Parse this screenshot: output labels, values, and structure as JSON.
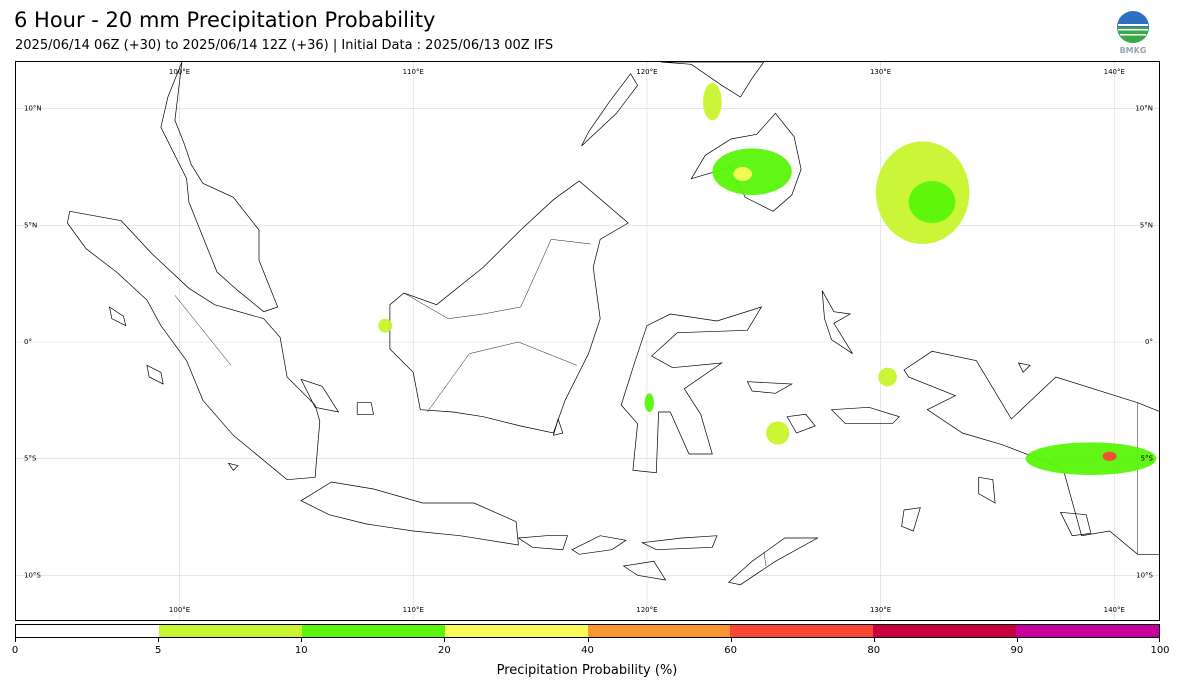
{
  "header": {
    "title": "6 Hour - 20 mm Precipitation Probability",
    "subtitle": "2025/06/14 06Z (+30) to 2025/06/14 12Z (+36) | Initial Data : 2025/06/13 00Z IFS",
    "logo_text": "BMKG"
  },
  "map": {
    "longitude_labels": [
      "100°E",
      "110°E",
      "120°E",
      "130°E",
      "140°E"
    ],
    "latitude_labels": [
      "10°N",
      "5°N",
      "0°",
      "5°S",
      "10°S"
    ],
    "longitudes": [
      100,
      110,
      120,
      130,
      140
    ],
    "latitudes": [
      10,
      5,
      0,
      -5,
      -10
    ],
    "lon_range": [
      93,
      142
    ],
    "lat_range": [
      -12,
      12
    ],
    "grid": true,
    "land_outline_color": "#000000",
    "precip_areas": [
      {
        "name": "mindanao",
        "lon": 124.5,
        "lat": 7.3,
        "rx": 1.7,
        "ry": 1.0,
        "prob": 15
      },
      {
        "name": "mindanao-core",
        "lon": 124.1,
        "lat": 7.2,
        "rx": 0.4,
        "ry": 0.3,
        "prob": 30
      },
      {
        "name": "pacific-north",
        "lon": 131.8,
        "lat": 6.4,
        "rx": 2.0,
        "ry": 2.2,
        "prob": 8
      },
      {
        "name": "pacific-north-core",
        "lon": 132.2,
        "lat": 6.0,
        "rx": 1.0,
        "ry": 0.9,
        "prob": 12
      },
      {
        "name": "papua-south",
        "lon": 139.0,
        "lat": -5.0,
        "rx": 2.8,
        "ry": 0.7,
        "prob": 12
      },
      {
        "name": "papua-south-core",
        "lon": 139.8,
        "lat": -4.9,
        "rx": 0.3,
        "ry": 0.2,
        "prob": 70
      },
      {
        "name": "sulawesi-south",
        "lon": 120.1,
        "lat": -2.6,
        "rx": 0.2,
        "ry": 0.4,
        "prob": 12
      },
      {
        "name": "banda",
        "lon": 125.6,
        "lat": -3.9,
        "rx": 0.5,
        "ry": 0.5,
        "prob": 7
      },
      {
        "name": "borneo-west",
        "lon": 108.8,
        "lat": 0.7,
        "rx": 0.3,
        "ry": 0.3,
        "prob": 8
      },
      {
        "name": "philippines-north",
        "lon": 122.8,
        "lat": 10.3,
        "rx": 0.4,
        "ry": 0.8,
        "prob": 7
      },
      {
        "name": "maluku",
        "lon": 130.3,
        "lat": -1.5,
        "rx": 0.4,
        "ry": 0.4,
        "prob": 7
      }
    ]
  },
  "colorbar": {
    "title": "Precipitation Probability (%)",
    "ticks": [
      "0",
      "5",
      "10",
      "20",
      "40",
      "60",
      "80",
      "90",
      "100"
    ],
    "colors": [
      "#ffffff",
      "#c8f52d",
      "#5af50a",
      "#fafa5a",
      "#fa9632",
      "#fa4632",
      "#c8003c",
      "#c8009b"
    ]
  }
}
